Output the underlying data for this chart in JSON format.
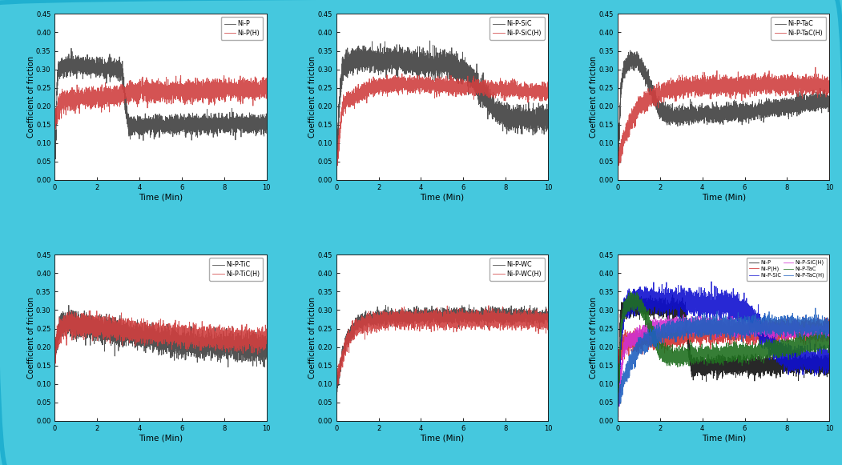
{
  "background_color": "#45c8de",
  "ylim": [
    0.0,
    0.45
  ],
  "yticks": [
    0.0,
    0.05,
    0.1,
    0.15,
    0.2,
    0.25,
    0.3,
    0.35,
    0.4,
    0.45
  ],
  "xlim": [
    0,
    10
  ],
  "xticks": [
    0,
    2,
    4,
    6,
    8,
    10
  ],
  "xlabel": "Time (Min)",
  "ylabel": "Coefficient of friction",
  "legend_sets": [
    [
      "Ni-P",
      "Ni-P(H)"
    ],
    [
      "Ni-P-SiC",
      "Ni-P-SiC(H)"
    ],
    [
      "Ni-P-TaC",
      "Ni-P-TaC(H)"
    ],
    [
      "Ni-P-TiC",
      "Ni-P-TiC(H)"
    ],
    [
      "Ni-P-WC",
      "Ni-P-WC(H)"
    ],
    [
      "Ni-P",
      "Ni-P(H)",
      "Ni-P-SiC",
      "Ni-P-SiC(H)",
      "Ni-P-TaC",
      "Ni-P-TaC(H)"
    ]
  ],
  "line_colors_single": [
    "#404040",
    "#d04040"
  ],
  "line_colors_combo": [
    "#101010",
    "#d03030",
    "#1010d0",
    "#d030d0",
    "#207020",
    "#2060c0"
  ],
  "seed": 12345
}
